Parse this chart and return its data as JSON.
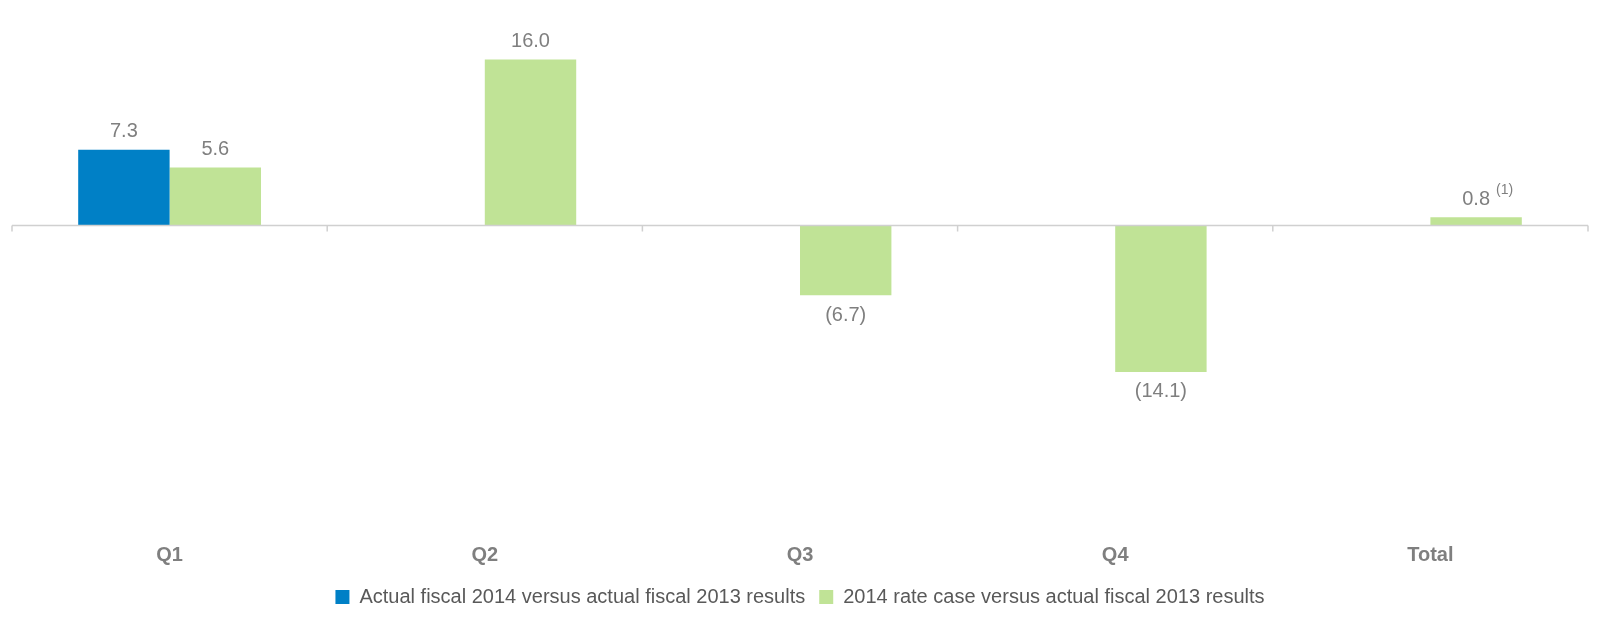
{
  "chart_data": {
    "type": "bar",
    "categories": [
      "Q1",
      "Q2",
      "Q3",
      "Q4",
      "Total"
    ],
    "series": [
      {
        "name": "Actual fiscal 2014 versus actual fiscal 2013 results",
        "color": "#0080c6",
        "values": [
          7.3,
          null,
          null,
          null,
          null
        ],
        "value_labels": [
          "7.3",
          null,
          null,
          null,
          null
        ]
      },
      {
        "name": "2014 rate case versus actual fiscal 2013 results",
        "color": "#c0e396",
        "values": [
          5.6,
          16.0,
          -6.7,
          -14.1,
          0.8
        ],
        "value_labels": [
          "5.6",
          "16.0",
          "(6.7)",
          "(14.1)",
          "0.8"
        ]
      }
    ],
    "annotations": [
      "(1)"
    ],
    "legend": "bottom",
    "grid": false
  }
}
